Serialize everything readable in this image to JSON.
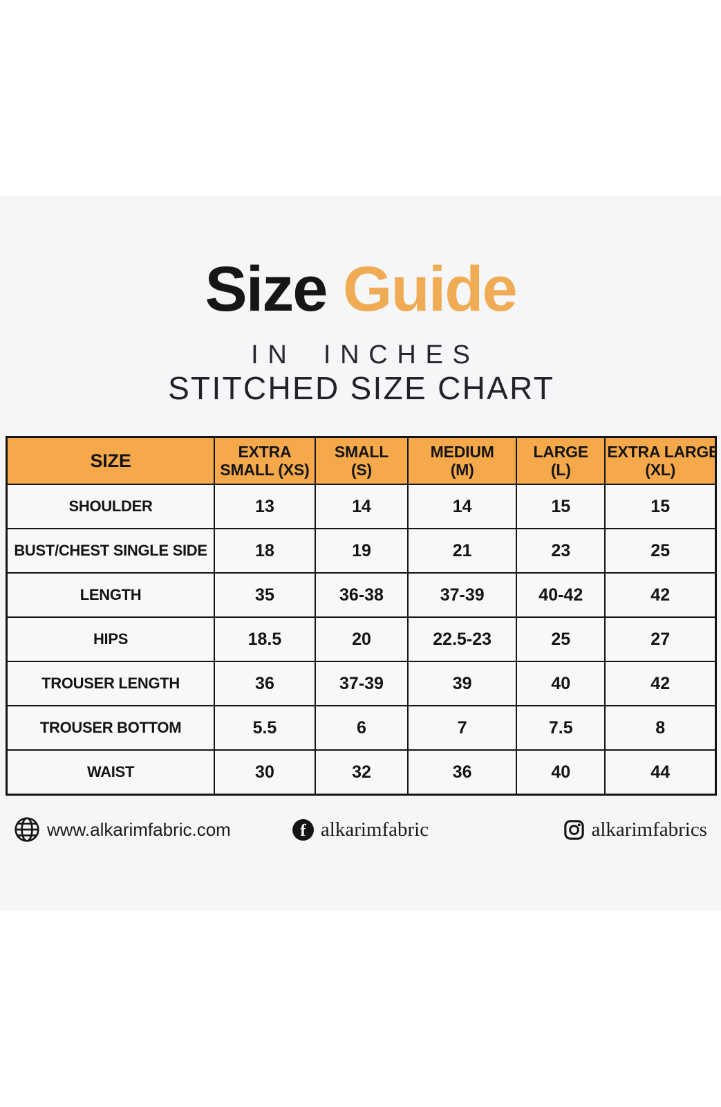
{
  "header": {
    "title_primary": "Size",
    "title_accent": "Guide",
    "subtitle": "IN INCHES",
    "subtitle2": "STITCHED SIZE CHART"
  },
  "chart_data": {
    "type": "table",
    "title": "Size Guide",
    "units": "inches",
    "subtitle": "IN INCHES",
    "subtitle2": "STITCHED SIZE CHART",
    "columns": [
      {
        "key": "size",
        "line1": "SIZE",
        "line2": ""
      },
      {
        "key": "extra-small",
        "line1": "EXTRA",
        "line2": "SMALL (XS)"
      },
      {
        "key": "small",
        "line1": "SMALL",
        "line2": "(S)"
      },
      {
        "key": "medium",
        "line1": "MEDIUM",
        "line2": "(M)"
      },
      {
        "key": "large",
        "line1": "LARGE",
        "line2": "(L)"
      },
      {
        "key": "extra-large",
        "line1": "EXTRA LARGE",
        "line2": "(XL)"
      }
    ],
    "rows": [
      {
        "label": "SHOULDER",
        "values": [
          "13",
          "14",
          "14",
          "15",
          "15"
        ]
      },
      {
        "label": "BUST/CHEST SINGLE SIDE",
        "values": [
          "18",
          "19",
          "21",
          "23",
          "25"
        ]
      },
      {
        "label": "LENGTH",
        "values": [
          "35",
          "36-38",
          "37-39",
          "40-42",
          "42"
        ]
      },
      {
        "label": "HIPS",
        "values": [
          "18.5",
          "20",
          "22.5-23",
          "25",
          "27"
        ]
      },
      {
        "label": "TROUSER LENGTH",
        "values": [
          "36",
          "37-39",
          "39",
          "40",
          "42"
        ]
      },
      {
        "label": "TROUSER BOTTOM",
        "values": [
          "5.5",
          "6",
          "7",
          "7.5",
          "8"
        ]
      },
      {
        "label": "WAIST",
        "values": [
          "30",
          "32",
          "36",
          "40",
          "44"
        ]
      }
    ]
  },
  "footer": {
    "website": "www.alkarimfabric.com",
    "facebook": "alkarimfabric",
    "instagram": "alkarimfabrics",
    "facebook_glyph": "f"
  },
  "colors": {
    "accent_orange_header": "#f6a94b",
    "accent_orange_title": "#f0ac55",
    "band_background": "#f5f6f8",
    "cell_background": "#f7f8f9",
    "border_black": "#141414"
  }
}
